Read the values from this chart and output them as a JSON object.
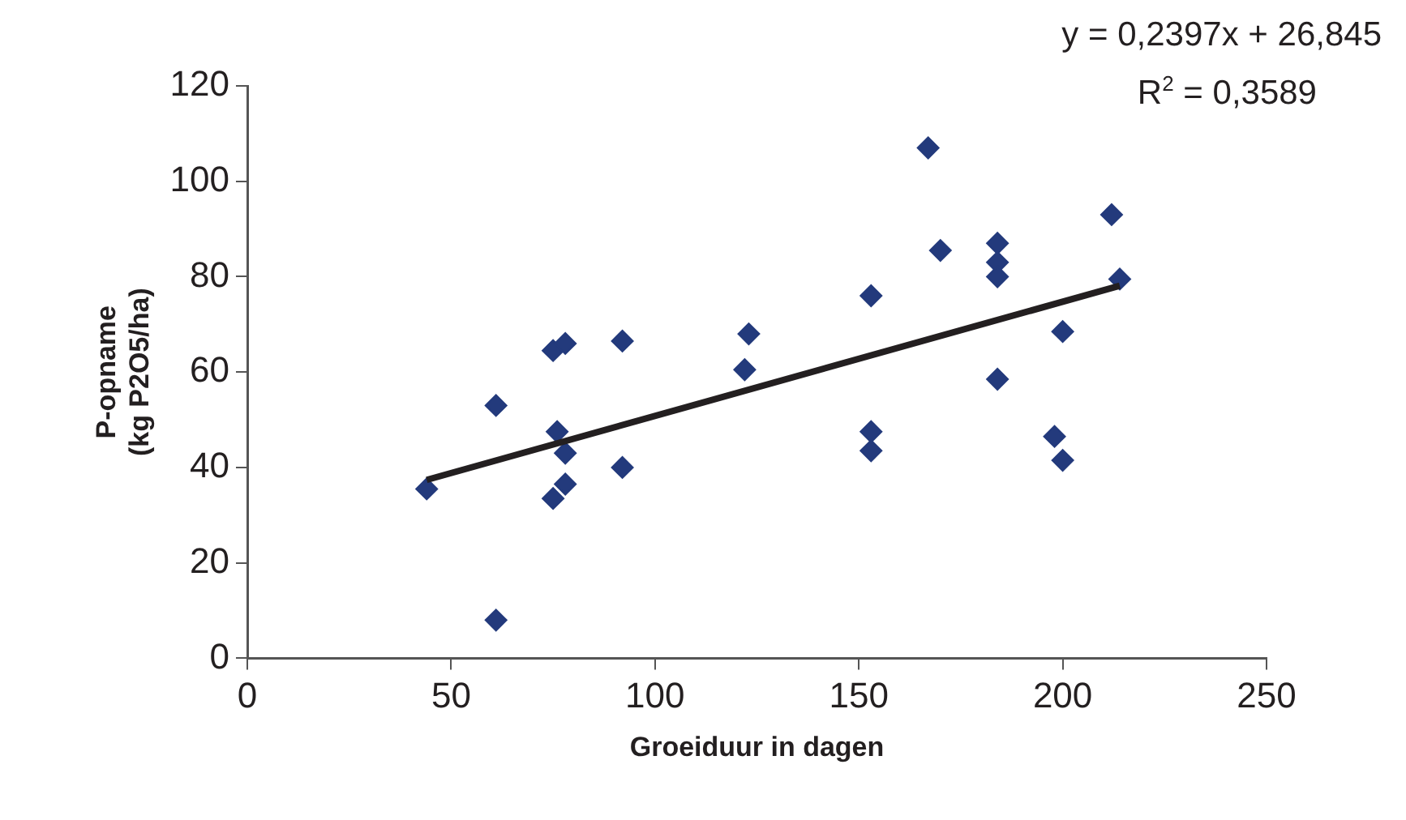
{
  "chart_data": {
    "type": "scatter",
    "xlabel": "Groeiduur in dagen",
    "ylabel": "P-opname\n(kg P2O5/ha)",
    "xlim": [
      0,
      250
    ],
    "xticks": [
      0,
      50,
      100,
      150,
      200,
      250
    ],
    "ylim": [
      0,
      120
    ],
    "yticks": [
      0,
      20,
      40,
      60,
      80,
      100,
      120
    ],
    "grid": false,
    "legend": false,
    "marker": "diamond",
    "annotations": [
      "y = 0,2397x + 26,845",
      "R$^{2}$ = 0,3589"
    ],
    "series": [
      {
        "color": "#233a7c",
        "x": [
          44,
          61,
          61,
          75,
          76,
          75,
          77,
          78,
          78,
          78,
          92,
          92,
          122,
          123,
          153,
          153,
          153,
          167,
          170,
          184,
          184,
          184,
          184,
          198,
          200,
          200,
          212,
          214
        ],
        "values": [
          35.5,
          53,
          8,
          64.5,
          47.5,
          33.5,
          null,
          66,
          43,
          36.5,
          66.5,
          40,
          60.5,
          68,
          76,
          47.5,
          43.5,
          107,
          85.5,
          87,
          83,
          80,
          58.5,
          46.5,
          68.5,
          41.5,
          93,
          79.5
        ]
      },
      {
        "type": "line",
        "color": "#231f20",
        "line_style": "solid",
        "marker": "none",
        "x": [
          44,
          214
        ],
        "values": [
          37.4,
          78.1
        ]
      }
    ]
  }
}
